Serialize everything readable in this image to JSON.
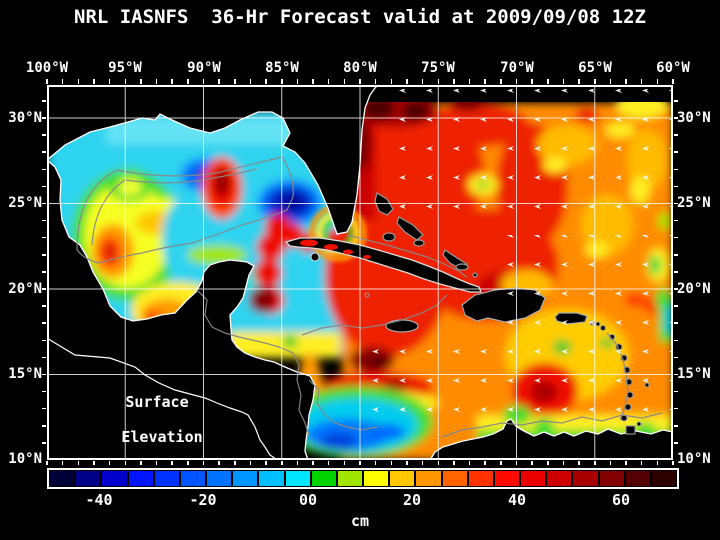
{
  "title": "NRL IASNFS  36-Hr Forecast valid at 2009/09/08 12Z",
  "map": {
    "lon_labels": [
      "100°W",
      "95°W",
      "90°W",
      "85°W",
      "80°W",
      "75°W",
      "70°W",
      "65°W",
      "60°W"
    ],
    "lat_labels_left": [
      "30°N",
      "25°N",
      "20°N",
      "15°N",
      "10°N"
    ],
    "lat_labels_right": [
      "30°N",
      "25°N",
      "20°N",
      "15°N",
      "10°N"
    ],
    "overlay_line1": "Surface",
    "overlay_line2": "Elevation",
    "land_color": "#000000",
    "coastline_color": "#ffffff",
    "contour_color": "#888888",
    "grid_color": "#ffffff"
  },
  "colorbar": {
    "tick_labels": [
      "-40",
      "-20",
      "00",
      "20",
      "40",
      "60"
    ],
    "unit": "cm",
    "segment_colors": [
      "#000038",
      "#000089",
      "#0000cd",
      "#0014ff",
      "#0032ff",
      "#0055ff",
      "#0073ff",
      "#0096ff",
      "#00bfff",
      "#00e6ff",
      "#00d400",
      "#a0e600",
      "#ffff00",
      "#ffc800",
      "#ff9600",
      "#ff6400",
      "#ff3200",
      "#ff0a00",
      "#eb0000",
      "#cd0000",
      "#a80000",
      "#820000",
      "#550000",
      "#2d0000"
    ]
  },
  "chart_data": {
    "type": "heatmap",
    "title": "NRL IASNFS 36-Hr Forecast valid at 2009/09/08 12Z",
    "variable": "Surface Elevation",
    "units": "cm",
    "lon_range_degW": [
      100,
      60
    ],
    "lat_range_degN": [
      10,
      32
    ],
    "grid_step_deg": 5,
    "colorbar_ticks_cm": [
      -40,
      -20,
      0,
      20,
      40,
      60
    ],
    "value_range_cm": [
      -50,
      70
    ],
    "approx_values_on_5deg_grid": {
      "note": "visual estimate of surface elevation (cm); null = land or no data",
      "lon_degW": [
        100,
        95,
        90,
        85,
        80,
        75,
        70,
        65,
        60
      ],
      "rows": [
        {
          "lat_degN": 30,
          "values": [
            null,
            -8,
            -8,
            null,
            65,
            35,
            30,
            25,
            35
          ]
        },
        {
          "lat_degN": 25,
          "values": [
            null,
            8,
            -12,
            -30,
            40,
            40,
            20,
            30,
            25
          ]
        },
        {
          "lat_degN": 20,
          "values": [
            null,
            null,
            10,
            50,
            45,
            45,
            30,
            25,
            35
          ]
        },
        {
          "lat_degN": 15,
          "values": [
            null,
            null,
            null,
            25,
            55,
            30,
            35,
            30,
            25
          ]
        },
        {
          "lat_degN": 10,
          "values": [
            null,
            null,
            null,
            null,
            0,
            -18,
            -5,
            0,
            10
          ]
        }
      ]
    },
    "features": [
      "Gulf of Mexico mostly -5 to -15 cm (cyan) with cyclone pair near 88-85W/25-27N (-35 cm, dark blue)",
      "warm eddy ~86W/26N (+45 cm red) embedded in Gulf cold pool",
      "western Gulf anticyclone ~97W/22-24N (+10 to +35 cm yellow-orange-red)",
      "Loop Current / Yucatan Channel red tongue (+40 cm)",
      "Gulf Stream band east of Florida up to +70 cm (dark maroon)",
      "Atlantic and Caribbean broadly +25 to +50 cm (orange-red) with mottled yellow patches",
      "dark maroon high south of Jamaica ~75W/16N (+65 cm)",
      "Colombian Basin low ~76-81W/11-12N (-20 to -30 cm cyan-blue)",
      "red high ~63W/14-15N (+50 cm) east Caribbean"
    ]
  }
}
